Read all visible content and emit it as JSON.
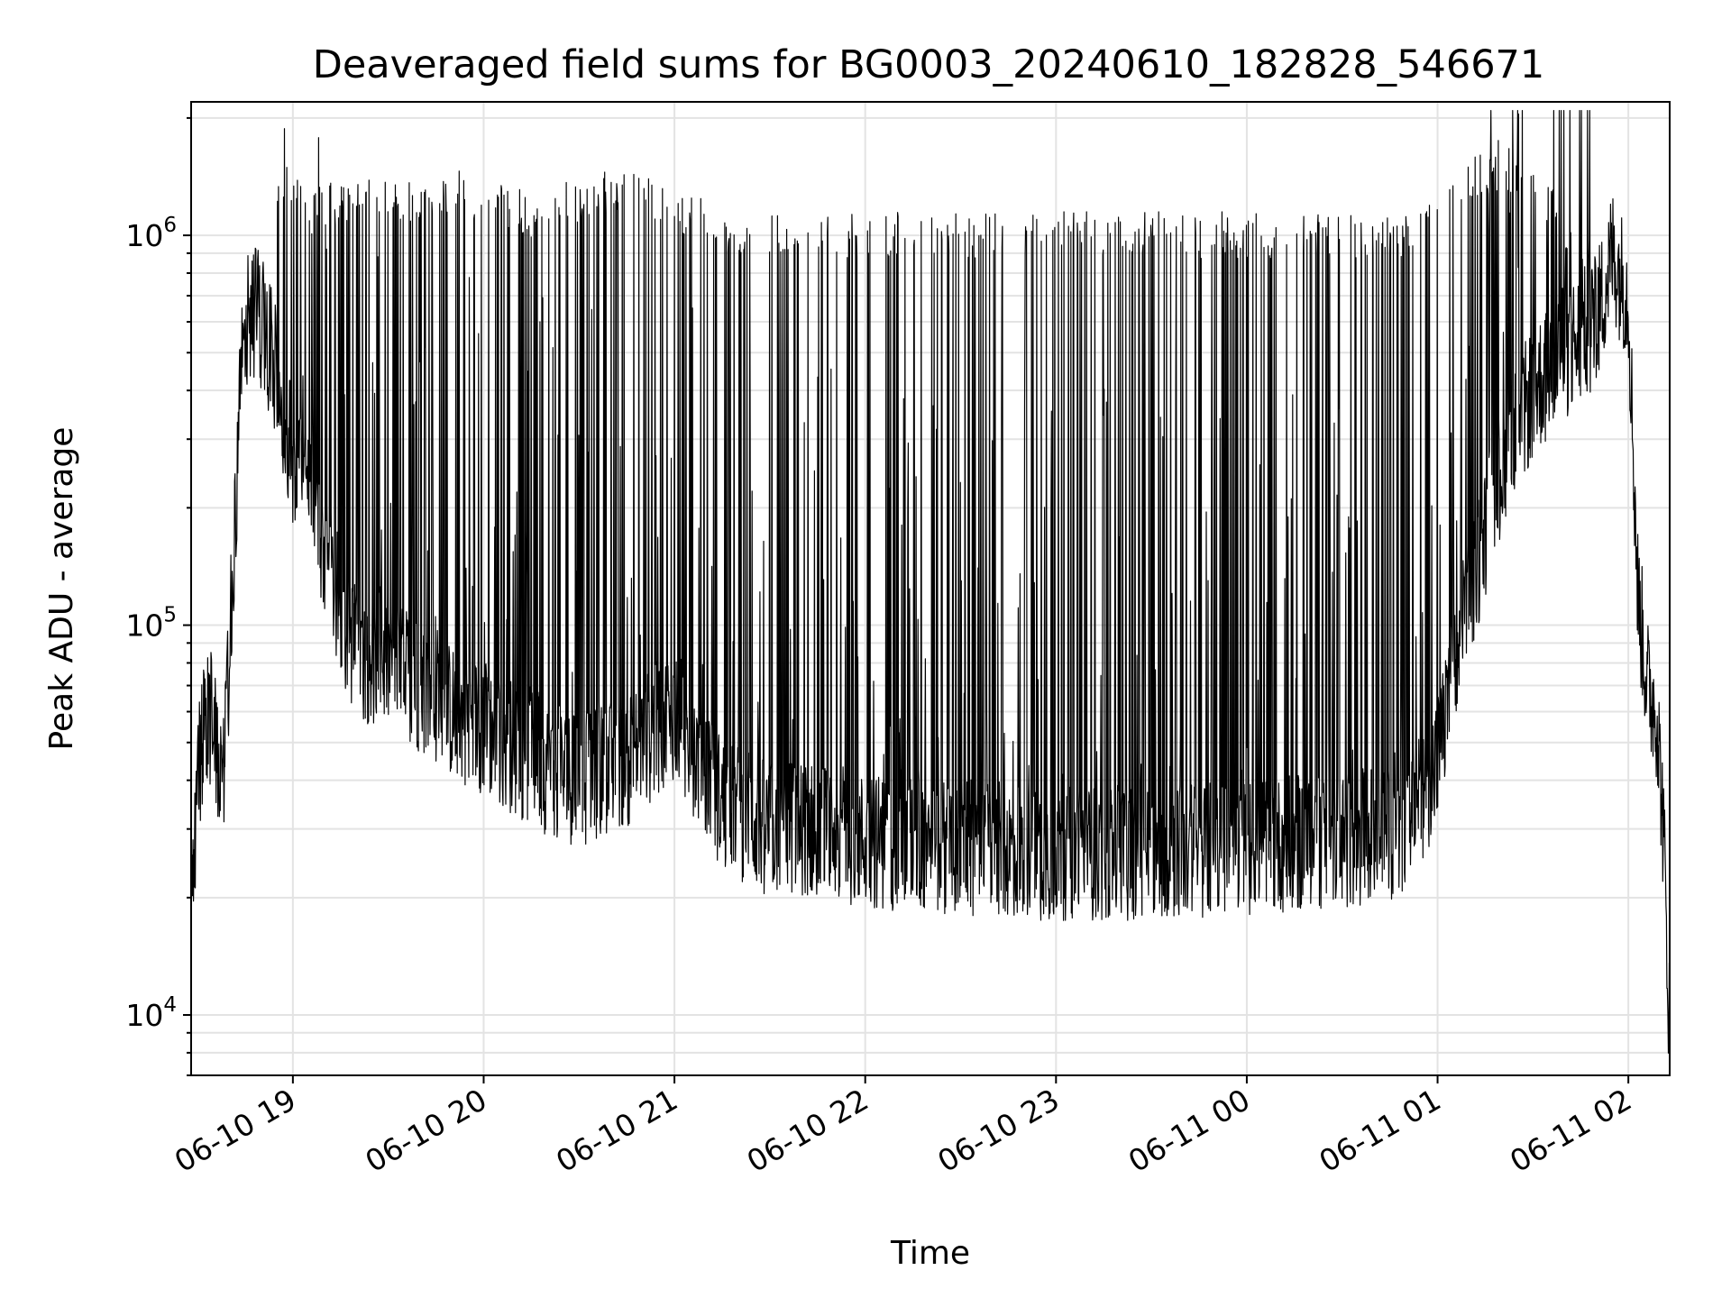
{
  "chart_data": {
    "type": "line",
    "title": "Deaveraged field sums for BG0003_20240610_182828_546671",
    "xlabel": "Time",
    "ylabel": "Peak ADU - average",
    "yscale": "log",
    "grid": true,
    "xlim": [
      "2024-06-10 18:28",
      "2024-06-11 02:13"
    ],
    "ylim": [
      7000,
      2200000
    ],
    "x_ticks": [
      "06-10 19",
      "06-10 20",
      "06-10 21",
      "06-10 22",
      "06-10 23",
      "06-11 00",
      "06-11 01",
      "06-11 02"
    ],
    "y_ticks": [
      {
        "value": 10000,
        "base": "10",
        "exp": "4"
      },
      {
        "value": 100000,
        "base": "10",
        "exp": "5"
      },
      {
        "value": 1000000,
        "base": "10",
        "exp": "6"
      }
    ],
    "series": [
      {
        "color": "#000000",
        "time": [
          "2024-06-10 18:28",
          "2024-06-10 18:30",
          "2024-06-10 18:32",
          "2024-06-10 18:34",
          "2024-06-10 18:36",
          "2024-06-10 18:38",
          "2024-06-10 18:40",
          "2024-06-10 18:42",
          "2024-06-10 18:44",
          "2024-06-10 18:48",
          "2024-06-10 18:50",
          "2024-06-10 18:52",
          "2024-06-10 18:55",
          "2024-06-10 18:58",
          "2024-06-10 19:00",
          "2024-06-10 19:03",
          "2024-06-10 19:06",
          "2024-06-10 19:10",
          "2024-06-10 19:15",
          "2024-06-10 19:20",
          "2024-06-10 19:30",
          "2024-06-10 19:40",
          "2024-06-10 19:50",
          "2024-06-10 20:00",
          "2024-06-10 20:15",
          "2024-06-10 20:30",
          "2024-06-10 20:45",
          "2024-06-10 21:00",
          "2024-06-10 21:15",
          "2024-06-10 21:30",
          "2024-06-10 21:45",
          "2024-06-10 22:00",
          "2024-06-10 22:30",
          "2024-06-10 23:00",
          "2024-06-10 23:30",
          "2024-06-11 00:00",
          "2024-06-11 00:30",
          "2024-06-11 00:50",
          "2024-06-11 01:00",
          "2024-06-11 01:10",
          "2024-06-11 01:20",
          "2024-06-11 01:30",
          "2024-06-11 01:40",
          "2024-06-11 01:50",
          "2024-06-11 01:55",
          "2024-06-11 02:00",
          "2024-06-11 02:03",
          "2024-06-11 02:06",
          "2024-06-11 02:09",
          "2024-06-11 02:11",
          "2024-06-11 02:13"
        ],
        "base": [
          20000,
          40000,
          55000,
          58000,
          50000,
          40000,
          85000,
          180000,
          550000,
          650000,
          600000,
          520000,
          450000,
          300000,
          270000,
          300000,
          220000,
          150000,
          110000,
          85000,
          80000,
          70000,
          60000,
          55000,
          45000,
          40000,
          45000,
          60000,
          35000,
          30000,
          30000,
          28000,
          27000,
          26000,
          26000,
          27000,
          28000,
          30000,
          45000,
          120000,
          250000,
          400000,
          500000,
          600000,
          900000,
          700000,
          120000,
          70000,
          60000,
          30000,
          9000
        ],
        "spike_ceiling": [
          null,
          null,
          null,
          null,
          null,
          null,
          null,
          null,
          null,
          null,
          null,
          null,
          1400000,
          1500000,
          1400000,
          1400000,
          1300000,
          1400000,
          1400000,
          1400000,
          1500000,
          1300000,
          1500000,
          1400000,
          1300000,
          1400000,
          1500000,
          1300000,
          1200000,
          1150000,
          1150000,
          1150000,
          1150000,
          1150000,
          1150000,
          1150000,
          1150000,
          1150000,
          1300000,
          1600000,
          1700000,
          1600000,
          1200000,
          1000000,
          null,
          null,
          null,
          null,
          null,
          null,
          null
        ]
      }
    ]
  }
}
